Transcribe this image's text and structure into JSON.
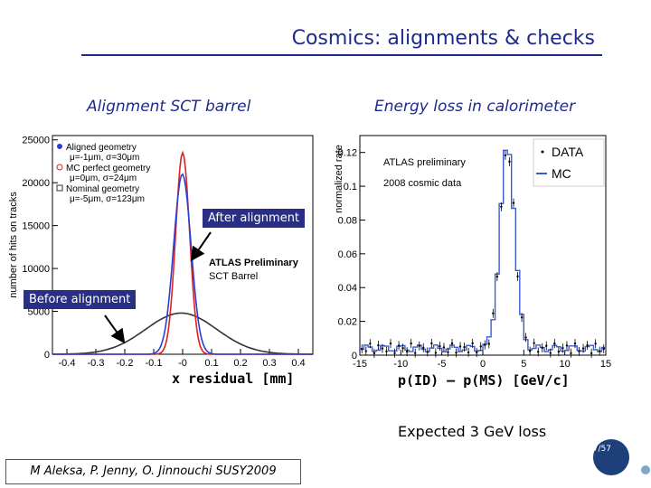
{
  "slide": {
    "title": "Cosmics: alignments & checks",
    "left_heading": "Alignment SCT barrel",
    "right_heading": "Energy loss in calorimeter",
    "callout_after": "After alignment",
    "callout_before": "Before alignment",
    "left_xlabel": "x residual [mm]",
    "right_xlabel": "p(ID) – p(MS)  [GeV/c]",
    "note": "Expected 3 GeV loss",
    "footer": "M Aleksa, P. Jenny, O. Jinnouchi  SUSY2009",
    "page": "17/57",
    "colors": {
      "title": "#1f2a8c",
      "callout_bg": "#2a2f86"
    }
  },
  "chart_data": [
    {
      "type": "line",
      "ylabel": "number of hits on tracks",
      "xlim": [
        -0.45,
        0.45
      ],
      "ylim": [
        0,
        25500
      ],
      "xticks": [
        "-0.4",
        "-0.3",
        "-0.2",
        "-0.1",
        "-0",
        "0.1",
        "0.2",
        "0.3",
        "0.4"
      ],
      "yticks": [
        "0",
        "5000",
        "10000",
        "15000",
        "20000",
        "25000"
      ],
      "annotation_lines": [
        "ATLAS Preliminary",
        "SCT Barrel"
      ],
      "legend_position": "top-left",
      "series": [
        {
          "name": "Aligned geometry",
          "detail": "μ=-1μm, σ=30μm",
          "color": "#2b3fd6",
          "marker": "dot",
          "mean": -0.001,
          "sigma": 0.03,
          "peak": 21000
        },
        {
          "name": "MC perfect geometry",
          "detail": "μ=0μm, σ=24μm",
          "color": "#e02020",
          "marker": "circle",
          "mean": 0.0,
          "sigma": 0.024,
          "peak": 23500
        },
        {
          "name": "Nominal geometry",
          "detail": "μ=-5μm, σ=123μm",
          "color": "#333333",
          "marker": "square",
          "mean": -0.005,
          "sigma": 0.123,
          "peak": 4800
        }
      ]
    },
    {
      "type": "line",
      "ylabel": "normalized rate",
      "xlim": [
        -15,
        15
      ],
      "ylim": [
        0,
        0.13
      ],
      "xticks": [
        "-15",
        "-10",
        "-5",
        "0",
        "5",
        "10",
        "15"
      ],
      "yticks": [
        "0",
        "0.02",
        "0.04",
        "0.06",
        "0.08",
        "0.1",
        "0.12"
      ],
      "annotation_lines": [
        "ATLAS preliminary",
        "2008 cosmic data"
      ],
      "legend_position": "top-right",
      "series": [
        {
          "name": "DATA",
          "color": "#000000",
          "marker": "dot",
          "mean": 3.0,
          "sigma": 0.9,
          "peak": 0.12
        },
        {
          "name": "MC",
          "color": "#3b5bd1",
          "marker": "line",
          "mean": 3.0,
          "sigma": 0.9,
          "peak": 0.12
        }
      ]
    }
  ]
}
